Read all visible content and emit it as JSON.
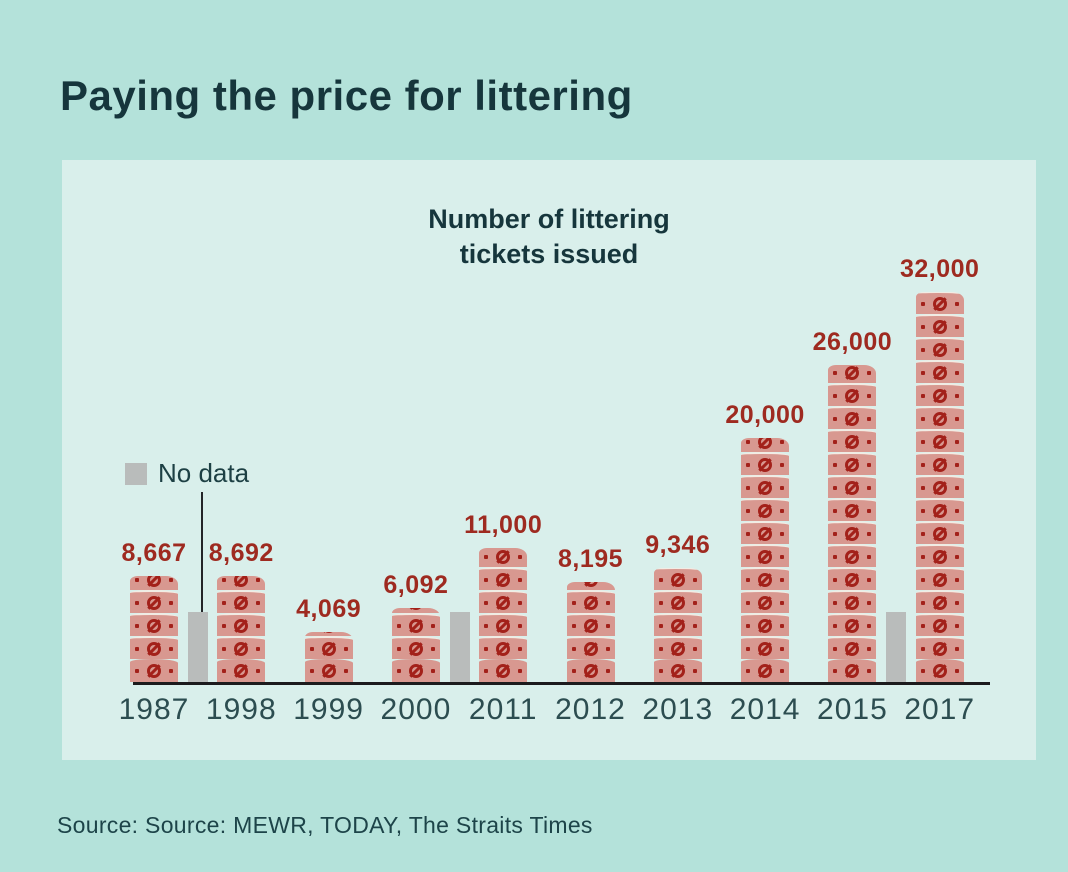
{
  "page": {
    "title": "Paying the price for littering",
    "source": "Source: Source: MEWR, TODAY, The Straits Times"
  },
  "chart_data": {
    "type": "bar",
    "title": "Paying the price for littering",
    "subtitle_line1": "Number of littering",
    "subtitle_line2": "tickets issued",
    "categories": [
      "1987",
      "1998",
      "1999",
      "2000",
      "2011",
      "2012",
      "2013",
      "2014",
      "2015",
      "2017"
    ],
    "values": [
      8667,
      8692,
      4069,
      6092,
      11000,
      8195,
      9346,
      20000,
      26000,
      32000
    ],
    "value_labels": [
      "8,667",
      "8,692",
      "4,069",
      "6,092",
      "11,000",
      "8,195",
      "9,346",
      "20,000",
      "26,000",
      "32,000"
    ],
    "no_data_gaps_after_index": [
      0,
      3,
      8
    ],
    "legend": {
      "no_data_label": "No data",
      "position": "middle-left"
    },
    "ylim": [
      0,
      32000
    ],
    "grid": false,
    "bar_style": "stacked-ticket-segments-with-no-littering-symbol",
    "colors": {
      "background": "#b4e2da",
      "panel": "#d9efeb",
      "bar": "#d89890",
      "bar_symbol": "#a3211a",
      "value_label": "#9e2a20",
      "no_data": "#b9bcbb",
      "axis": "#1b1b1d",
      "heading": "#16363c",
      "tick_label": "#2c4d50"
    }
  }
}
